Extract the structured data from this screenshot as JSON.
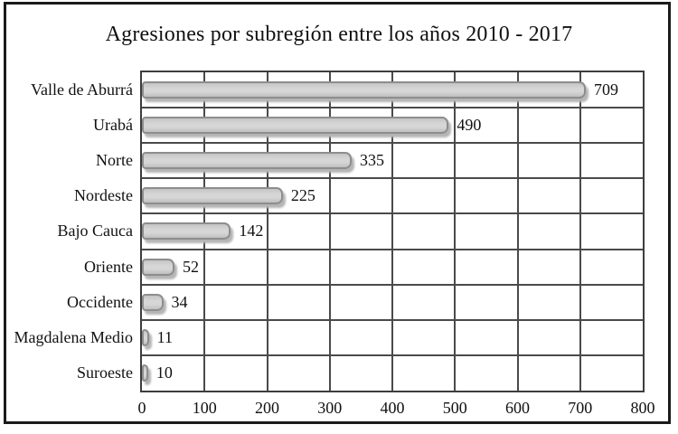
{
  "figure": {
    "background": "#ffffff",
    "frame_border_color": "#1b1b1b"
  },
  "chart_data": {
    "type": "bar",
    "orientation": "horizontal",
    "title": "Agresiones por subregión entre los años 2010 - 2017",
    "categories": [
      "Valle de Aburrá",
      "Urabá",
      "Norte",
      "Nordeste",
      "Bajo Cauca",
      "Oriente",
      "Occidente",
      "Magdalena Medio",
      "Suroeste"
    ],
    "values": [
      709,
      490,
      335,
      225,
      142,
      52,
      34,
      11,
      10
    ],
    "data_labels": [
      "709",
      "490",
      "335",
      "225",
      "142",
      "52",
      "34",
      "11",
      "10"
    ],
    "xlabel": "",
    "ylabel": "",
    "xlim": [
      0,
      800
    ],
    "xticks": [
      0,
      100,
      200,
      300,
      400,
      500,
      600,
      700,
      800
    ],
    "xtick_labels": [
      "0",
      "100",
      "200",
      "300",
      "400",
      "500",
      "600",
      "700",
      "800"
    ],
    "grid": "on",
    "legend": "none",
    "colors": {
      "bar_fill": "#d6d6d6",
      "bar_border": "#8d8d8d",
      "bar_shadow": "#b5b5b5",
      "gridline": "#4a4a4a",
      "plot_border": "#3d3d3d",
      "text": "#111111"
    }
  }
}
